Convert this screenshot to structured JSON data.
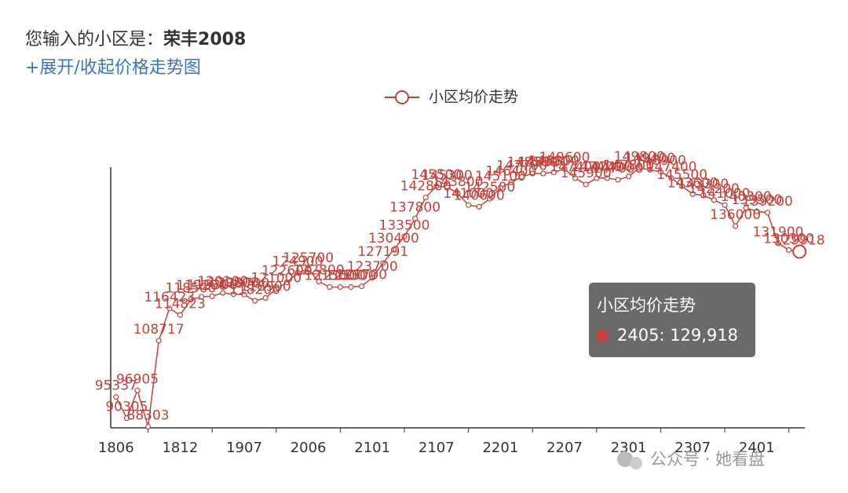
{
  "header": {
    "prompt": "您输入的小区是：",
    "community": "荣丰2008",
    "toggle": "+展开/收起价格走势图"
  },
  "chart_data": {
    "type": "line",
    "categories": [
      "1806",
      null,
      null,
      null,
      null,
      null,
      "1812",
      null,
      null,
      null,
      null,
      null,
      "1907",
      null,
      null,
      null,
      null,
      null,
      "2006",
      null,
      null,
      null,
      null,
      null,
      "2101",
      null,
      null,
      null,
      null,
      null,
      "2107",
      null,
      null,
      null,
      null,
      null,
      "2201",
      null,
      null,
      null,
      null,
      null,
      "2207",
      null,
      null,
      null,
      null,
      null,
      "2301",
      null,
      null,
      null,
      null,
      null,
      "2307",
      null,
      null,
      null,
      null,
      null,
      "2401",
      null,
      null,
      null,
      null
    ],
    "series": [
      {
        "name": "小区均价走势",
        "color": "#c1433c",
        "values": [
          95337,
          90305,
          96905,
          88303,
          108717,
          116423,
          114823,
          118500,
          119200,
          119300,
          120100,
          119800,
          119700,
          118200,
          118900,
          121000,
          122600,
          124900,
          125700,
          122800,
          121500,
          121500,
          121500,
          121700,
          123700,
          127191,
          130400,
          133500,
          137800,
          142800,
          145500,
          145300,
          143800,
          141000,
          140600,
          142500,
          145100,
          146400,
          147700,
          148500,
          148500,
          148800,
          149600,
          147400,
          145900,
          147400,
          147400,
          147000,
          147800,
          149800,
          149400,
          148900,
          147400,
          145500,
          143600,
          143300,
          142200,
          141000,
          136000,
          140300,
          139500,
          139200,
          131900,
          130300,
          129918
        ]
      }
    ],
    "ylim": [
      88000,
      150000
    ],
    "legend": "top",
    "tooltip": {
      "title": "小区均价走势",
      "text": "2405: 129,918"
    }
  },
  "watermark": "公众号 · 她看盘"
}
